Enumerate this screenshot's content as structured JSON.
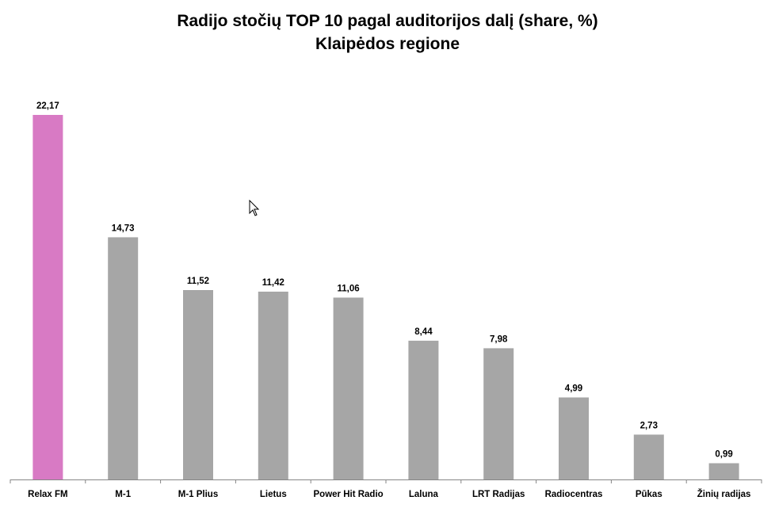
{
  "chart_data": {
    "type": "bar",
    "title": "Radijo stočių TOP 10 pagal auditorijos dalį (share, %)",
    "subtitle": "Klaipėdos regione",
    "categories": [
      "Relax FM",
      "M-1",
      "M-1 Plius",
      "Lietus",
      "Power Hit Radio",
      "Laluna",
      "LRT Radijas",
      "Radiocentras",
      "Pūkas",
      "Žinių radijas"
    ],
    "values": [
      22.17,
      14.73,
      11.52,
      11.42,
      11.06,
      8.44,
      7.98,
      4.99,
      2.73,
      0.99
    ],
    "value_labels": [
      "22,17",
      "14,73",
      "11,52",
      "11,42",
      "11,06",
      "8,44",
      "7,98",
      "4,99",
      "2,73",
      "0,99"
    ],
    "highlight_index": 0,
    "colors": {
      "highlight": "#d87ac4",
      "default": "#a6a6a6",
      "axis": "#868686"
    },
    "xlabel": "",
    "ylabel": "",
    "ylim": [
      0,
      22.17
    ],
    "grid": false,
    "legend": "none"
  }
}
